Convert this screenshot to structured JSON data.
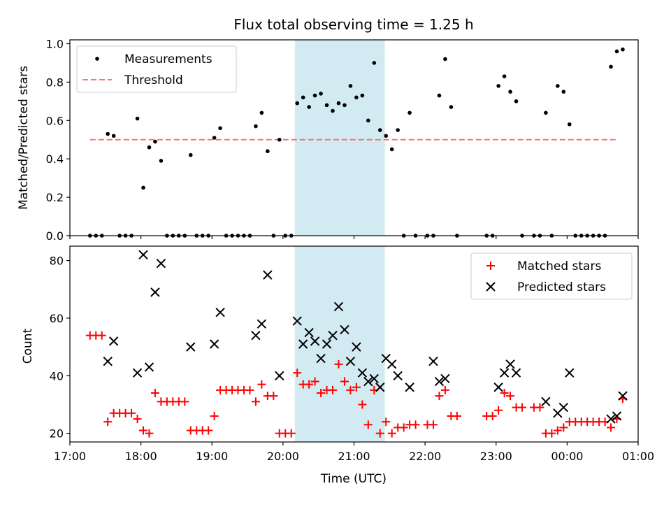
{
  "chart_data": [
    {
      "type": "scatter",
      "title": "Flux total observing time = 1.25 h",
      "xlabel": "",
      "ylabel": "Matched/Predicted stars",
      "xlim": [
        "17:00",
        "01:00"
      ],
      "ylim": [
        0,
        1.02
      ],
      "yticks": [
        "0.0",
        "0.2",
        "0.4",
        "0.6",
        "0.8",
        "1.0"
      ],
      "grid": false,
      "legend_position": "top-left",
      "highlight_band": {
        "start": "20:10",
        "end": "21:26",
        "color": "#add8e6"
      },
      "threshold": {
        "name": "Threshold",
        "value": 0.5,
        "x_start": "17:17",
        "x_end": "00:42",
        "color": "#ff7373"
      },
      "series": [
        {
          "name": "Measurements",
          "color": "#000000",
          "points": [
            [
              "17:17",
              0
            ],
            [
              "17:22",
              0
            ],
            [
              "17:27",
              0
            ],
            [
              "17:32",
              0.53
            ],
            [
              "17:37",
              0.52
            ],
            [
              "17:42",
              0
            ],
            [
              "17:47",
              0
            ],
            [
              "17:52",
              0
            ],
            [
              "17:57",
              0.61
            ],
            [
              "18:02",
              0.25
            ],
            [
              "18:07",
              0.46
            ],
            [
              "18:12",
              0.49
            ],
            [
              "18:17",
              0.39
            ],
            [
              "18:22",
              0
            ],
            [
              "18:27",
              0
            ],
            [
              "18:32",
              0
            ],
            [
              "18:37",
              0
            ],
            [
              "18:42",
              0.42
            ],
            [
              "18:47",
              0
            ],
            [
              "18:52",
              0
            ],
            [
              "18:57",
              0
            ],
            [
              "19:02",
              0.51
            ],
            [
              "19:07",
              0.56
            ],
            [
              "19:12",
              0
            ],
            [
              "19:17",
              0
            ],
            [
              "19:22",
              0
            ],
            [
              "19:27",
              0
            ],
            [
              "19:32",
              0
            ],
            [
              "19:37",
              0.57
            ],
            [
              "19:42",
              0.64
            ],
            [
              "19:47",
              0.44
            ],
            [
              "19:52",
              0
            ],
            [
              "19:57",
              0.5
            ],
            [
              "20:02",
              0
            ],
            [
              "20:07",
              0
            ],
            [
              "20:12",
              0.69
            ],
            [
              "20:17",
              0.72
            ],
            [
              "20:22",
              0.67
            ],
            [
              "20:27",
              0.73
            ],
            [
              "20:32",
              0.74
            ],
            [
              "20:37",
              0.68
            ],
            [
              "20:42",
              0.65
            ],
            [
              "20:47",
              0.69
            ],
            [
              "20:52",
              0.68
            ],
            [
              "20:57",
              0.78
            ],
            [
              "21:02",
              0.72
            ],
            [
              "21:07",
              0.73
            ],
            [
              "21:12",
              0.6
            ],
            [
              "21:17",
              0.9
            ],
            [
              "21:22",
              0.55
            ],
            [
              "21:27",
              0.52
            ],
            [
              "21:32",
              0.45
            ],
            [
              "21:37",
              0.55
            ],
            [
              "21:42",
              0
            ],
            [
              "21:47",
              0.64
            ],
            [
              "21:52",
              0
            ],
            [
              "22:02",
              0
            ],
            [
              "22:07",
              0
            ],
            [
              "22:12",
              0.73
            ],
            [
              "22:17",
              0.92
            ],
            [
              "22:22",
              0.67
            ],
            [
              "22:27",
              0
            ],
            [
              "22:52",
              0
            ],
            [
              "22:57",
              0
            ],
            [
              "23:02",
              0.78
            ],
            [
              "23:07",
              0.83
            ],
            [
              "23:12",
              0.75
            ],
            [
              "23:17",
              0.7
            ],
            [
              "23:22",
              0
            ],
            [
              "23:32",
              0
            ],
            [
              "23:37",
              0
            ],
            [
              "23:42",
              0.64
            ],
            [
              "23:47",
              0
            ],
            [
              "23:52",
              0.78
            ],
            [
              "23:57",
              0.75
            ],
            [
              "00:02",
              0.58
            ],
            [
              "00:07",
              0
            ],
            [
              "00:12",
              0
            ],
            [
              "00:17",
              0
            ],
            [
              "00:22",
              0
            ],
            [
              "00:27",
              0
            ],
            [
              "00:32",
              0
            ],
            [
              "00:37",
              0.88
            ],
            [
              "00:42",
              0.96
            ],
            [
              "00:47",
              0.97
            ]
          ]
        },
        {
          "name": "Threshold",
          "color": "#ff7373"
        }
      ]
    },
    {
      "type": "scatter",
      "title": "",
      "xlabel": "Time (UTC)",
      "ylabel": "Count",
      "xlim": [
        "17:00",
        "01:00"
      ],
      "xticks": [
        "17:00",
        "18:00",
        "19:00",
        "20:00",
        "21:00",
        "22:00",
        "23:00",
        "00:00",
        "01:00"
      ],
      "ylim": [
        17,
        85
      ],
      "yticks": [
        "20",
        "40",
        "60",
        "80"
      ],
      "grid": false,
      "legend_position": "top-right",
      "highlight_band": {
        "start": "20:10",
        "end": "21:26",
        "color": "#add8e6"
      },
      "series": [
        {
          "name": "Matched stars",
          "color": "#ff0000",
          "marker": "+",
          "points": [
            [
              "17:17",
              54
            ],
            [
              "17:22",
              54
            ],
            [
              "17:27",
              54
            ],
            [
              "17:32",
              24
            ],
            [
              "17:37",
              27
            ],
            [
              "17:42",
              27
            ],
            [
              "17:47",
              27
            ],
            [
              "17:52",
              27
            ],
            [
              "17:57",
              25
            ],
            [
              "18:02",
              21
            ],
            [
              "18:07",
              20
            ],
            [
              "18:12",
              34
            ],
            [
              "18:17",
              31
            ],
            [
              "18:22",
              31
            ],
            [
              "18:27",
              31
            ],
            [
              "18:32",
              31
            ],
            [
              "18:37",
              31
            ],
            [
              "18:42",
              21
            ],
            [
              "18:47",
              21
            ],
            [
              "18:52",
              21
            ],
            [
              "18:57",
              21
            ],
            [
              "19:02",
              26
            ],
            [
              "19:07",
              35
            ],
            [
              "19:12",
              35
            ],
            [
              "19:17",
              35
            ],
            [
              "19:22",
              35
            ],
            [
              "19:27",
              35
            ],
            [
              "19:32",
              35
            ],
            [
              "19:37",
              31
            ],
            [
              "19:42",
              37
            ],
            [
              "19:47",
              33
            ],
            [
              "19:52",
              33
            ],
            [
              "19:57",
              20
            ],
            [
              "20:02",
              20
            ],
            [
              "20:07",
              20
            ],
            [
              "20:12",
              41
            ],
            [
              "20:17",
              37
            ],
            [
              "20:22",
              37
            ],
            [
              "20:27",
              38
            ],
            [
              "20:32",
              34
            ],
            [
              "20:37",
              35
            ],
            [
              "20:42",
              35
            ],
            [
              "20:47",
              44
            ],
            [
              "20:52",
              38
            ],
            [
              "20:57",
              35
            ],
            [
              "21:02",
              36
            ],
            [
              "21:07",
              30
            ],
            [
              "21:12",
              23
            ],
            [
              "21:17",
              35
            ],
            [
              "21:22",
              20
            ],
            [
              "21:27",
              24
            ],
            [
              "21:32",
              20
            ],
            [
              "21:37",
              22
            ],
            [
              "21:42",
              22
            ],
            [
              "21:47",
              23
            ],
            [
              "21:52",
              23
            ],
            [
              "22:02",
              23
            ],
            [
              "22:07",
              23
            ],
            [
              "22:12",
              33
            ],
            [
              "22:17",
              35
            ],
            [
              "22:22",
              26
            ],
            [
              "22:27",
              26
            ],
            [
              "22:52",
              26
            ],
            [
              "22:57",
              26
            ],
            [
              "23:02",
              28
            ],
            [
              "23:07",
              34
            ],
            [
              "23:12",
              33
            ],
            [
              "23:17",
              29
            ],
            [
              "23:22",
              29
            ],
            [
              "23:32",
              29
            ],
            [
              "23:37",
              29
            ],
            [
              "23:42",
              20
            ],
            [
              "23:47",
              20
            ],
            [
              "23:52",
              21
            ],
            [
              "23:57",
              22
            ],
            [
              "00:02",
              24
            ],
            [
              "00:07",
              24
            ],
            [
              "00:12",
              24
            ],
            [
              "00:17",
              24
            ],
            [
              "00:22",
              24
            ],
            [
              "00:27",
              24
            ],
            [
              "00:32",
              24
            ],
            [
              "00:37",
              22
            ],
            [
              "00:42",
              25
            ],
            [
              "00:47",
              32
            ]
          ]
        },
        {
          "name": "Predicted stars",
          "color": "#000000",
          "marker": "x",
          "points": [
            [
              "17:32",
              45
            ],
            [
              "17:37",
              52
            ],
            [
              "17:57",
              41
            ],
            [
              "18:02",
              82
            ],
            [
              "18:07",
              43
            ],
            [
              "18:12",
              69
            ],
            [
              "18:17",
              79
            ],
            [
              "18:42",
              50
            ],
            [
              "19:02",
              51
            ],
            [
              "19:07",
              62
            ],
            [
              "19:37",
              54
            ],
            [
              "19:42",
              58
            ],
            [
              "19:47",
              75
            ],
            [
              "19:57",
              40
            ],
            [
              "20:12",
              59
            ],
            [
              "20:17",
              51
            ],
            [
              "20:22",
              55
            ],
            [
              "20:27",
              52
            ],
            [
              "20:32",
              46
            ],
            [
              "20:37",
              51
            ],
            [
              "20:42",
              54
            ],
            [
              "20:47",
              64
            ],
            [
              "20:52",
              56
            ],
            [
              "20:57",
              45
            ],
            [
              "21:02",
              50
            ],
            [
              "21:07",
              41
            ],
            [
              "21:12",
              38
            ],
            [
              "21:17",
              39
            ],
            [
              "21:22",
              36
            ],
            [
              "21:27",
              46
            ],
            [
              "21:32",
              44
            ],
            [
              "21:37",
              40
            ],
            [
              "21:47",
              36
            ],
            [
              "22:07",
              45
            ],
            [
              "22:12",
              38
            ],
            [
              "22:17",
              39
            ],
            [
              "23:02",
              36
            ],
            [
              "23:07",
              41
            ],
            [
              "23:12",
              44
            ],
            [
              "23:17",
              41
            ],
            [
              "23:42",
              31
            ],
            [
              "23:52",
              27
            ],
            [
              "23:57",
              29
            ],
            [
              "00:02",
              41
            ],
            [
              "00:37",
              25
            ],
            [
              "00:42",
              26
            ],
            [
              "00:47",
              33
            ]
          ]
        }
      ]
    }
  ]
}
